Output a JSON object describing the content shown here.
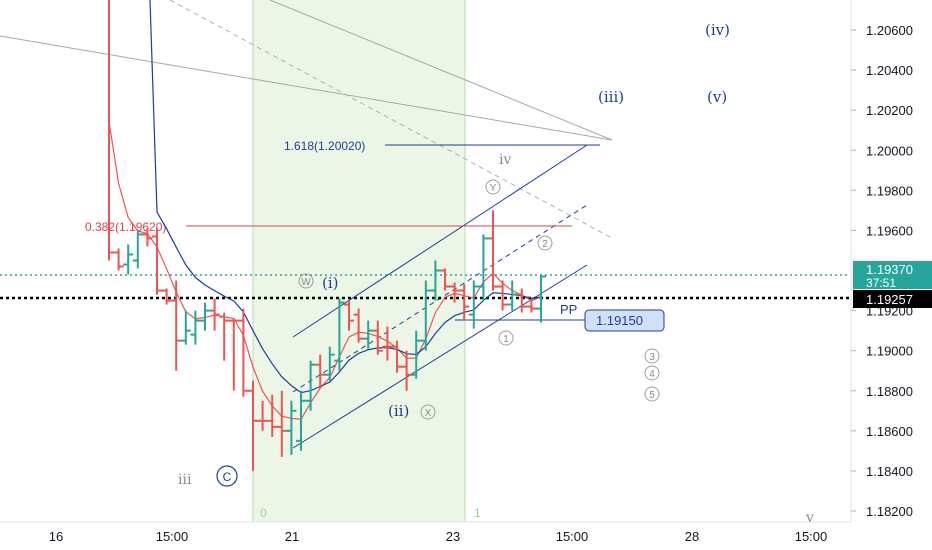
{
  "chart_data": {
    "type": "candlestick",
    "instrument_shown": "EUR/USD-like price",
    "y_axis": {
      "ticks": [
        "1.20600",
        "1.20400",
        "1.20200",
        "1.20000",
        "1.19800",
        "1.19600",
        "1.19200",
        "1.19000",
        "1.18800",
        "1.18600",
        "1.18400",
        "1.18200"
      ],
      "range": [
        1.1815,
        1.2075
      ]
    },
    "x_axis": {
      "ticks": [
        "16",
        "15:00",
        "21",
        "15:00",
        "23",
        "15:00",
        "28",
        "15:00"
      ]
    },
    "price_labels": {
      "current_price": "1.19370",
      "countdown": "37:51",
      "dotted_level": "1.19257",
      "pp_value": "1.19150"
    },
    "fib_levels": [
      {
        "label": "1.618(1.20020)",
        "value": 1.2002,
        "color": "#1c3f94"
      },
      {
        "label": "0.382(1.19620)",
        "value": 1.1962,
        "color": "#d9454a"
      }
    ],
    "pp_label": "PP",
    "wave_labels_blue": [
      "(iv)",
      "(iii)",
      "(v)",
      "(i)",
      "(ii)"
    ],
    "wave_labels_gray": [
      "iv",
      "iii",
      "v"
    ],
    "circled_labels_blue": [
      "C"
    ],
    "circled_labels_gray": [
      "W",
      "X",
      "Y",
      "1",
      "2",
      "3",
      "4",
      "5"
    ],
    "time_zone_labels": [
      "0",
      "1"
    ],
    "candles": [
      {
        "o": 1.208,
        "h": 1.208,
        "c": 1.1949,
        "l": 1.1945,
        "dir": "down"
      },
      {
        "o": 1.1949,
        "h": 1.1951,
        "c": 1.1942,
        "l": 1.194,
        "dir": "down"
      },
      {
        "o": 1.1943,
        "h": 1.1953,
        "c": 1.1948,
        "l": 1.1938,
        "dir": "up"
      },
      {
        "o": 1.1945,
        "h": 1.196,
        "c": 1.1958,
        "l": 1.1941,
        "dir": "up"
      },
      {
        "o": 1.1958,
        "h": 1.1961,
        "c": 1.1956,
        "l": 1.1952,
        "dir": "down"
      },
      {
        "o": 1.1957,
        "h": 1.1961,
        "c": 1.193,
        "l": 1.1928,
        "dir": "down"
      },
      {
        "o": 1.193,
        "h": 1.1931,
        "c": 1.1925,
        "l": 1.1923,
        "dir": "down"
      },
      {
        "o": 1.1925,
        "h": 1.1935,
        "c": 1.1905,
        "l": 1.189,
        "dir": "down"
      },
      {
        "o": 1.1905,
        "h": 1.192,
        "c": 1.191,
        "l": 1.1903,
        "dir": "up"
      },
      {
        "o": 1.1908,
        "h": 1.192,
        "c": 1.1915,
        "l": 1.1903,
        "dir": "up"
      },
      {
        "o": 1.1915,
        "h": 1.1924,
        "c": 1.192,
        "l": 1.191,
        "dir": "up"
      },
      {
        "o": 1.192,
        "h": 1.1926,
        "c": 1.1918,
        "l": 1.191,
        "dir": "down"
      },
      {
        "o": 1.1917,
        "h": 1.1919,
        "c": 1.1915,
        "l": 1.1895,
        "dir": "down"
      },
      {
        "o": 1.1915,
        "h": 1.1916,
        "c": 1.1915,
        "l": 1.188,
        "dir": "down"
      },
      {
        "o": 1.1915,
        "h": 1.1921,
        "c": 1.188,
        "l": 1.1877,
        "dir": "down"
      },
      {
        "o": 1.188,
        "h": 1.1885,
        "c": 1.1865,
        "l": 1.184,
        "dir": "down"
      },
      {
        "o": 1.1865,
        "h": 1.1875,
        "c": 1.1865,
        "l": 1.186,
        "dir": "down"
      },
      {
        "o": 1.1865,
        "h": 1.1878,
        "c": 1.1862,
        "l": 1.1857,
        "dir": "down"
      },
      {
        "o": 1.1862,
        "h": 1.188,
        "c": 1.186,
        "l": 1.1847,
        "dir": "down"
      },
      {
        "o": 1.186,
        "h": 1.1875,
        "c": 1.187,
        "l": 1.1848,
        "dir": "up"
      },
      {
        "o": 1.1855,
        "h": 1.188,
        "c": 1.1875,
        "l": 1.185,
        "dir": "up"
      },
      {
        "o": 1.1875,
        "h": 1.1895,
        "c": 1.1893,
        "l": 1.187,
        "dir": "up"
      },
      {
        "o": 1.1893,
        "h": 1.1898,
        "c": 1.1888,
        "l": 1.1881,
        "dir": "down"
      },
      {
        "o": 1.1888,
        "h": 1.1902,
        "c": 1.1898,
        "l": 1.1885,
        "dir": "up"
      },
      {
        "o": 1.1895,
        "h": 1.1926,
        "c": 1.1924,
        "l": 1.189,
        "dir": "up"
      },
      {
        "o": 1.1923,
        "h": 1.1925,
        "c": 1.1915,
        "l": 1.191,
        "dir": "down"
      },
      {
        "o": 1.1918,
        "h": 1.1921,
        "c": 1.1906,
        "l": 1.1904,
        "dir": "down"
      },
      {
        "o": 1.1906,
        "h": 1.1915,
        "c": 1.191,
        "l": 1.1901,
        "dir": "up"
      },
      {
        "o": 1.191,
        "h": 1.1915,
        "c": 1.19,
        "l": 1.1898,
        "dir": "down"
      },
      {
        "o": 1.1902,
        "h": 1.1912,
        "c": 1.1902,
        "l": 1.1895,
        "dir": "down"
      },
      {
        "o": 1.1902,
        "h": 1.1905,
        "c": 1.1892,
        "l": 1.1889,
        "dir": "down"
      },
      {
        "o": 1.1892,
        "h": 1.19,
        "c": 1.1888,
        "l": 1.188,
        "dir": "down"
      },
      {
        "o": 1.1888,
        "h": 1.191,
        "c": 1.1905,
        "l": 1.1886,
        "dir": "up"
      },
      {
        "o": 1.1905,
        "h": 1.1935,
        "c": 1.193,
        "l": 1.19,
        "dir": "up"
      },
      {
        "o": 1.193,
        "h": 1.1945,
        "c": 1.194,
        "l": 1.1925,
        "dir": "up"
      },
      {
        "o": 1.194,
        "h": 1.1941,
        "c": 1.1932,
        "l": 1.193,
        "dir": "down"
      },
      {
        "o": 1.1932,
        "h": 1.1934,
        "c": 1.193,
        "l": 1.1924,
        "dir": "down"
      },
      {
        "o": 1.193,
        "h": 1.1933,
        "c": 1.1922,
        "l": 1.1915,
        "dir": "down"
      },
      {
        "o": 1.1918,
        "h": 1.1935,
        "c": 1.1932,
        "l": 1.1911,
        "dir": "up"
      },
      {
        "o": 1.1932,
        "h": 1.1958,
        "c": 1.1956,
        "l": 1.1925,
        "dir": "up"
      },
      {
        "o": 1.1956,
        "h": 1.197,
        "c": 1.1932,
        "l": 1.193,
        "dir": "down"
      },
      {
        "o": 1.1932,
        "h": 1.1935,
        "c": 1.1923,
        "l": 1.192,
        "dir": "down"
      },
      {
        "o": 1.1923,
        "h": 1.1935,
        "c": 1.1928,
        "l": 1.192,
        "dir": "up"
      },
      {
        "o": 1.1928,
        "h": 1.1931,
        "c": 1.1922,
        "l": 1.1919,
        "dir": "down"
      },
      {
        "o": 1.1922,
        "h": 1.1925,
        "c": 1.1921,
        "l": 1.1919,
        "dir": "down"
      },
      {
        "o": 1.1921,
        "h": 1.1938,
        "c": 1.1937,
        "l": 1.1914,
        "dir": "up"
      }
    ]
  },
  "colors": {
    "up": "#26a69a",
    "down": "#ef5350",
    "blue": "#1c3f94",
    "gray": "#9e9e9e",
    "shade": "#eaf5e2",
    "teal_dotted": "#26a69a"
  }
}
